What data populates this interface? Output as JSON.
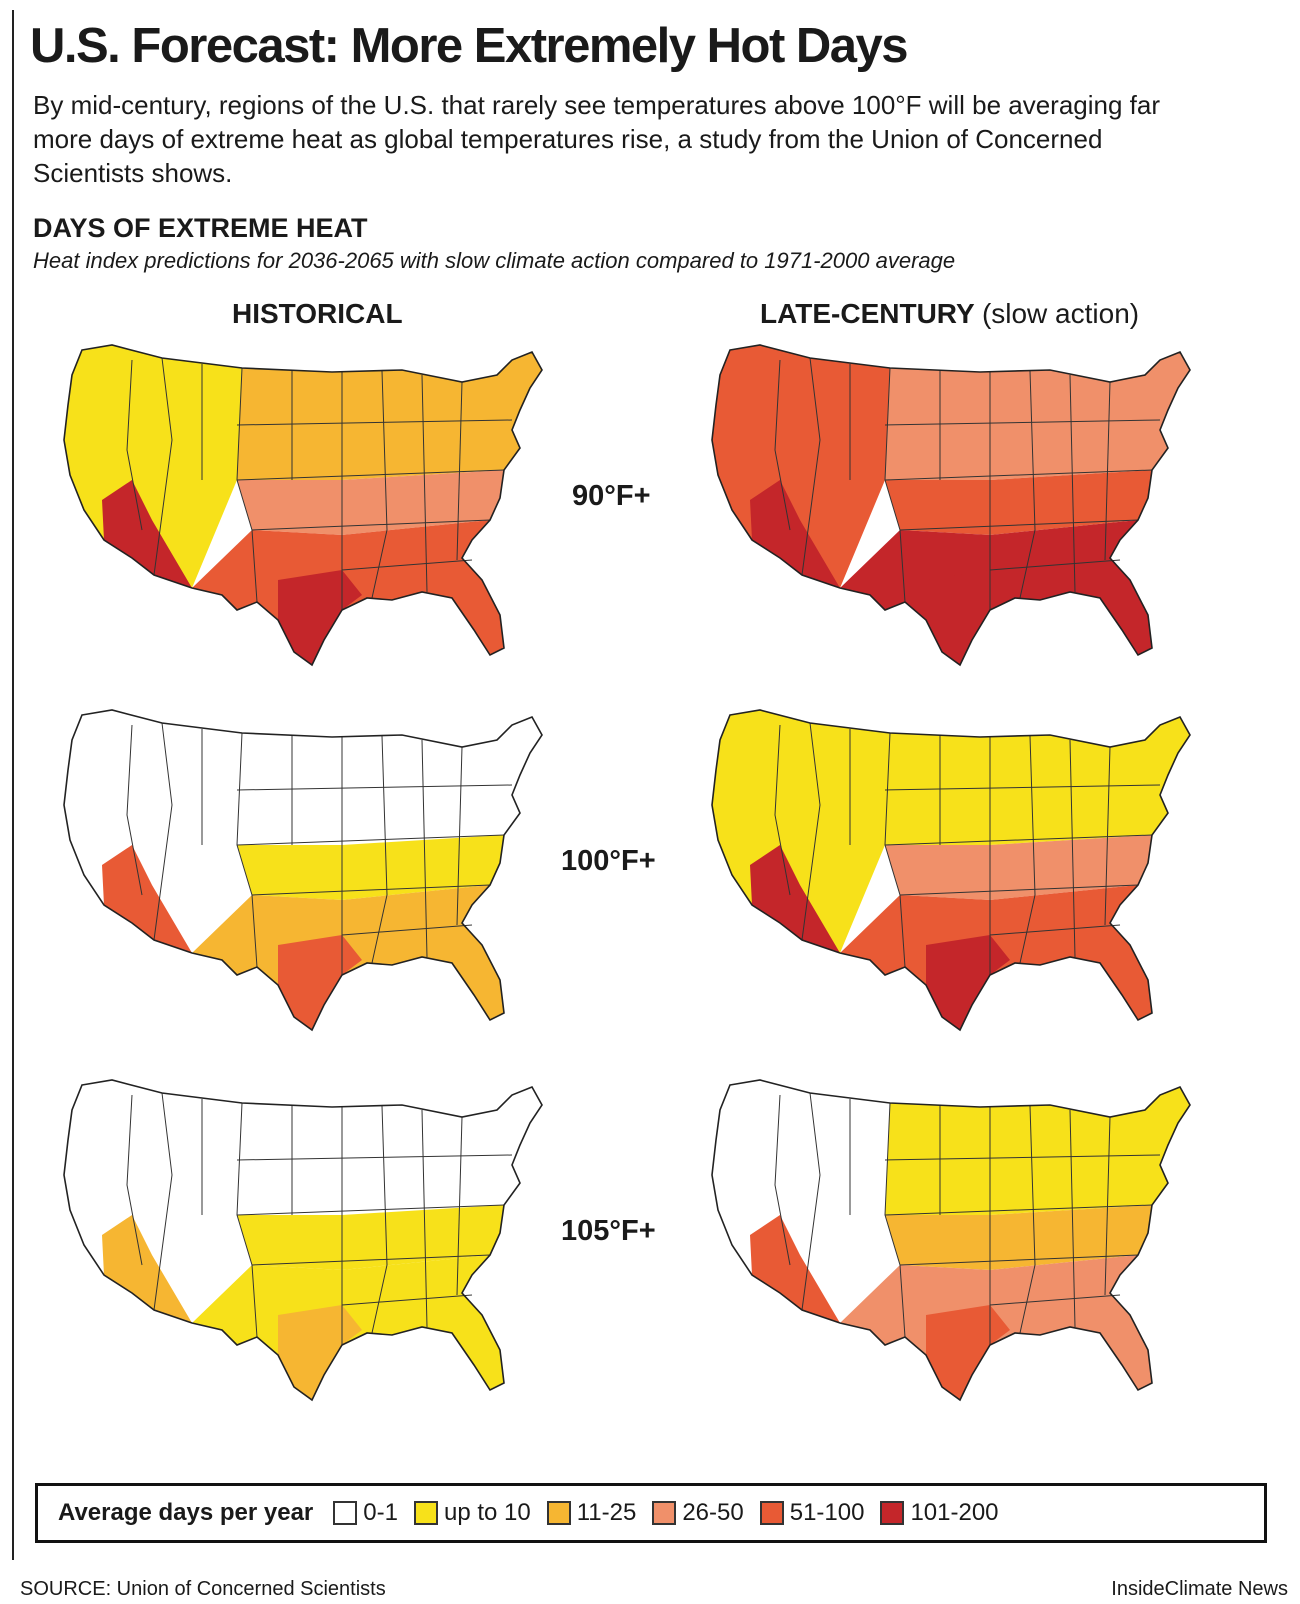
{
  "title": "U.S. Forecast: More Extremely Hot Days",
  "subtitle": "By mid-century, regions of the U.S. that rarely see temperatures above 100°F will be averaging far more days of extreme heat as global temperatures rise, a study from the Union of Concerned Scientists shows.",
  "section_heading": "DAYS OF EXTREME HEAT",
  "section_subheading": "Heat index predictions for 2036-2065 with slow climate action compared to 1971-2000 average",
  "columns": {
    "historical": "HISTORICAL",
    "late_bold": "LATE-CENTURY",
    "late_light": "(slow action)"
  },
  "rows": [
    {
      "label": "90°F+"
    },
    {
      "label": "100°F+"
    },
    {
      "label": "105°F+"
    }
  ],
  "legend": {
    "title": "Average days per year",
    "items": [
      {
        "label": "0-1",
        "color": "#ffffff"
      },
      {
        "label": "up to 10",
        "color": "#f7e11a"
      },
      {
        "label": "11-25",
        "color": "#f6b632"
      },
      {
        "label": "26-50",
        "color": "#f0906a"
      },
      {
        "label": "51-100",
        "color": "#e85a35"
      },
      {
        "label": "101-200",
        "color": "#c4262a"
      }
    ]
  },
  "maps": [
    {
      "column": "historical",
      "row": "90°F+",
      "palette": {
        "west": "#f7e11a",
        "north": "#f6b632",
        "center": "#f0906a",
        "south": "#e85a35",
        "hot": "#c4262a"
      }
    },
    {
      "column": "late",
      "row": "90°F+",
      "palette": {
        "west": "#e85a35",
        "north": "#f0906a",
        "center": "#e85a35",
        "south": "#c4262a",
        "hot": "#c4262a"
      }
    },
    {
      "column": "historical",
      "row": "100°F+",
      "palette": {
        "west": "#ffffff",
        "north": "#ffffff",
        "center": "#f7e11a",
        "south": "#f6b632",
        "hot": "#e85a35"
      }
    },
    {
      "column": "late",
      "row": "100°F+",
      "palette": {
        "west": "#f7e11a",
        "north": "#f7e11a",
        "center": "#f0906a",
        "south": "#e85a35",
        "hot": "#c4262a"
      }
    },
    {
      "column": "historical",
      "row": "105°F+",
      "palette": {
        "west": "#ffffff",
        "north": "#ffffff",
        "center": "#f7e11a",
        "south": "#f7e11a",
        "hot": "#f6b632"
      }
    },
    {
      "column": "late",
      "row": "105°F+",
      "palette": {
        "west": "#ffffff",
        "north": "#f7e11a",
        "center": "#f6b632",
        "south": "#f0906a",
        "hot": "#e85a35"
      }
    }
  ],
  "source": "SOURCE: Union of Concerned Scientists",
  "credit": "InsideClimate News"
}
